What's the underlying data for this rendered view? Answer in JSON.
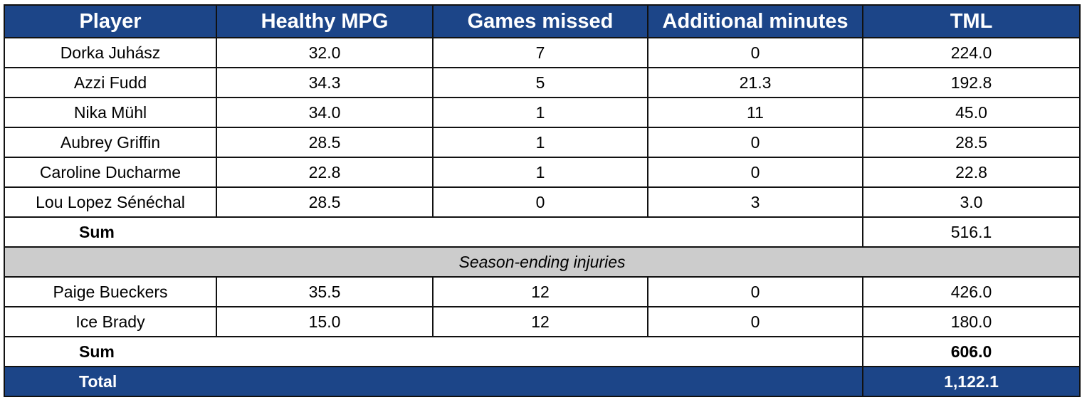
{
  "header": {
    "player": "Player",
    "healthy_mpg": "Healthy MPG",
    "games_missed": "Games missed",
    "additional_minutes": "Additional minutes",
    "tml": "TML"
  },
  "rows": [
    {
      "player": "Dorka Juhász",
      "mpg": "32.0",
      "games_missed": "7",
      "additional": "0",
      "tml": "224.0"
    },
    {
      "player": "Azzi Fudd",
      "mpg": "34.3",
      "games_missed": "5",
      "additional": "21.3",
      "tml": "192.8"
    },
    {
      "player": "Nika Mühl",
      "mpg": "34.0",
      "games_missed": "1",
      "additional": "11",
      "tml": "45.0"
    },
    {
      "player": "Aubrey Griffin",
      "mpg": "28.5",
      "games_missed": "1",
      "additional": "0",
      "tml": "28.5"
    },
    {
      "player": "Caroline Ducharme",
      "mpg": "22.8",
      "games_missed": "1",
      "additional": "0",
      "tml": "22.8"
    },
    {
      "player": "Lou Lopez Sénéchal",
      "mpg": "28.5",
      "games_missed": "0",
      "additional": "3",
      "tml": "3.0"
    }
  ],
  "sum1": {
    "label": "Sum",
    "value": "516.1"
  },
  "section_label": "Season-ending injuries",
  "rows_season_ending": [
    {
      "player": "Paige Bueckers",
      "mpg": "35.5",
      "games_missed": "12",
      "additional": "0",
      "tml": "426.0"
    },
    {
      "player": "Ice Brady",
      "mpg": "15.0",
      "games_missed": "12",
      "additional": "0",
      "tml": "180.0"
    }
  ],
  "sum2": {
    "label": "Sum",
    "value": "606.0"
  },
  "total": {
    "label": "Total",
    "value": "1,122.1"
  },
  "colors": {
    "header_bg": "#1c4588",
    "section_bg": "#cccccc",
    "header_text": "#ffffff"
  }
}
